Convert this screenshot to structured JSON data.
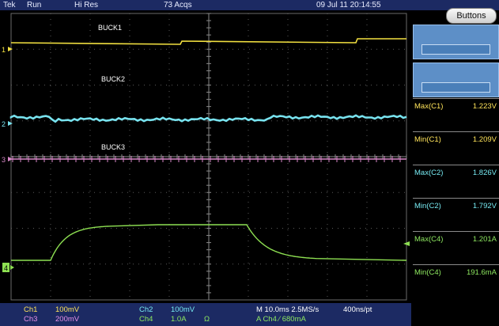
{
  "header": {
    "brand": "Tek",
    "run_state": "Run",
    "acq_mode": "Hi Res",
    "acq_count": "73 Acqs",
    "datetime": "09 Jul 11 20:14:55"
  },
  "buttons_label": "Buttons",
  "traces": [
    {
      "label": "BUCK1",
      "marker": "1",
      "color": "#f2e040"
    },
    {
      "label": "BUCK2",
      "marker": "2",
      "color": "#78e2ee"
    },
    {
      "label": "BUCK3",
      "marker": "3",
      "color": "#d888c8"
    },
    {
      "label": "",
      "marker": "4",
      "color": "#8ee052"
    }
  ],
  "measurements": [
    {
      "label": "Max(C1)",
      "value": "1.223V",
      "channel": "c1"
    },
    {
      "label": "Min(C1)",
      "value": "1.209V",
      "channel": "c1"
    },
    {
      "label": "Max(C2)",
      "value": "1.826V",
      "channel": "c2"
    },
    {
      "label": "Min(C2)",
      "value": "1.792V",
      "channel": "c2"
    },
    {
      "label": "Max(C4)",
      "value": "1.201A",
      "channel": "c4"
    },
    {
      "label": "Min(C4)",
      "value": "191.6mA",
      "channel": "c4"
    }
  ],
  "footer": {
    "ch1_label": "Ch1",
    "ch1_scale": "100mV",
    "ch2_label": "Ch2",
    "ch2_scale": "100mV",
    "ch3_label": "Ch3",
    "ch3_scale": "200mV",
    "ch4_label": "Ch4",
    "ch4_scale": "1.0A",
    "ch4_unit": "Ω",
    "timebase": "M 10.0ms 2.5MS/s",
    "record": "400ns/pt",
    "trigger": "A  Ch4  ∕  680mA"
  }
}
